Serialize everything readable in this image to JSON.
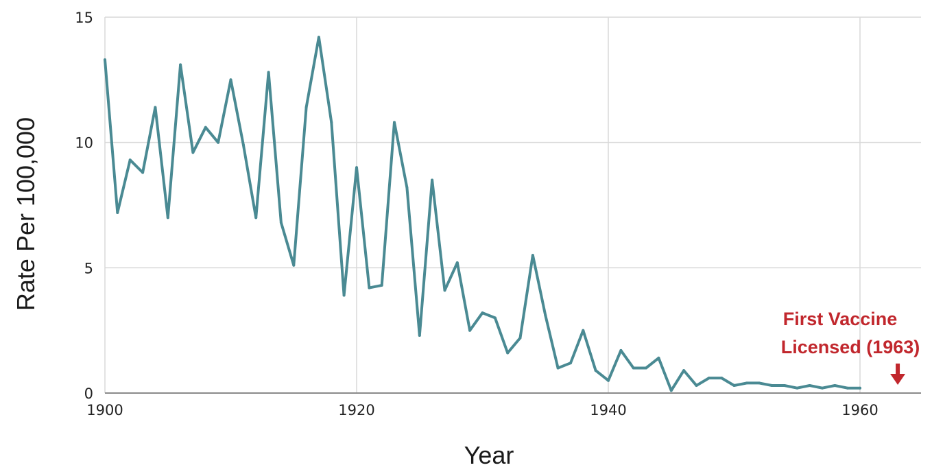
{
  "chart_data": {
    "type": "line",
    "title": "",
    "xlabel": "Year",
    "ylabel": "Rate Per 100,000",
    "xlim": [
      1900,
      1966
    ],
    "ylim": [
      0,
      15
    ],
    "x_ticks": [
      "1900",
      "1920",
      "1940",
      "1960"
    ],
    "y_ticks": [
      "0",
      "5",
      "10",
      "15"
    ],
    "grid": true,
    "line_color": "#4a8a93",
    "series": [
      {
        "x": [
          1900,
          1901,
          1902,
          1903,
          1904,
          1905,
          1906,
          1907,
          1908,
          1909,
          1910,
          1911,
          1912,
          1913,
          1914,
          1915,
          1916,
          1917,
          1918,
          1919,
          1920,
          1921,
          1922,
          1923,
          1924,
          1925,
          1926,
          1927,
          1928,
          1929,
          1930,
          1931,
          1932,
          1933,
          1934,
          1935,
          1936,
          1937,
          1938,
          1939,
          1940,
          1941,
          1942,
          1943,
          1944,
          1945,
          1946,
          1947,
          1948,
          1949,
          1950,
          1951,
          1952,
          1953,
          1954,
          1955,
          1956,
          1957,
          1958,
          1959,
          1960
        ],
        "values": [
          13.3,
          7.2,
          9.3,
          8.8,
          11.4,
          7.0,
          13.1,
          9.6,
          10.6,
          10.0,
          12.5,
          9.9,
          7.0,
          12.8,
          6.8,
          5.1,
          11.4,
          14.2,
          10.8,
          3.9,
          9.0,
          4.2,
          4.3,
          10.8,
          8.2,
          2.3,
          8.5,
          4.1,
          5.2,
          2.5,
          3.2,
          3.0,
          1.6,
          2.2,
          5.5,
          3.1,
          1.0,
          1.2,
          2.5,
          0.9,
          0.5,
          1.7,
          1.0,
          1.0,
          1.4,
          0.1,
          0.9,
          0.3,
          0.6,
          0.6,
          0.3,
          0.4,
          0.4,
          0.3,
          0.3,
          0.2,
          0.3,
          0.2,
          0.3,
          0.2,
          0.2
        ]
      }
    ],
    "annotation": {
      "line1": "First Vaccine",
      "line2": "Licensed (1963)",
      "year": 1963,
      "color": "#c1272d"
    }
  }
}
